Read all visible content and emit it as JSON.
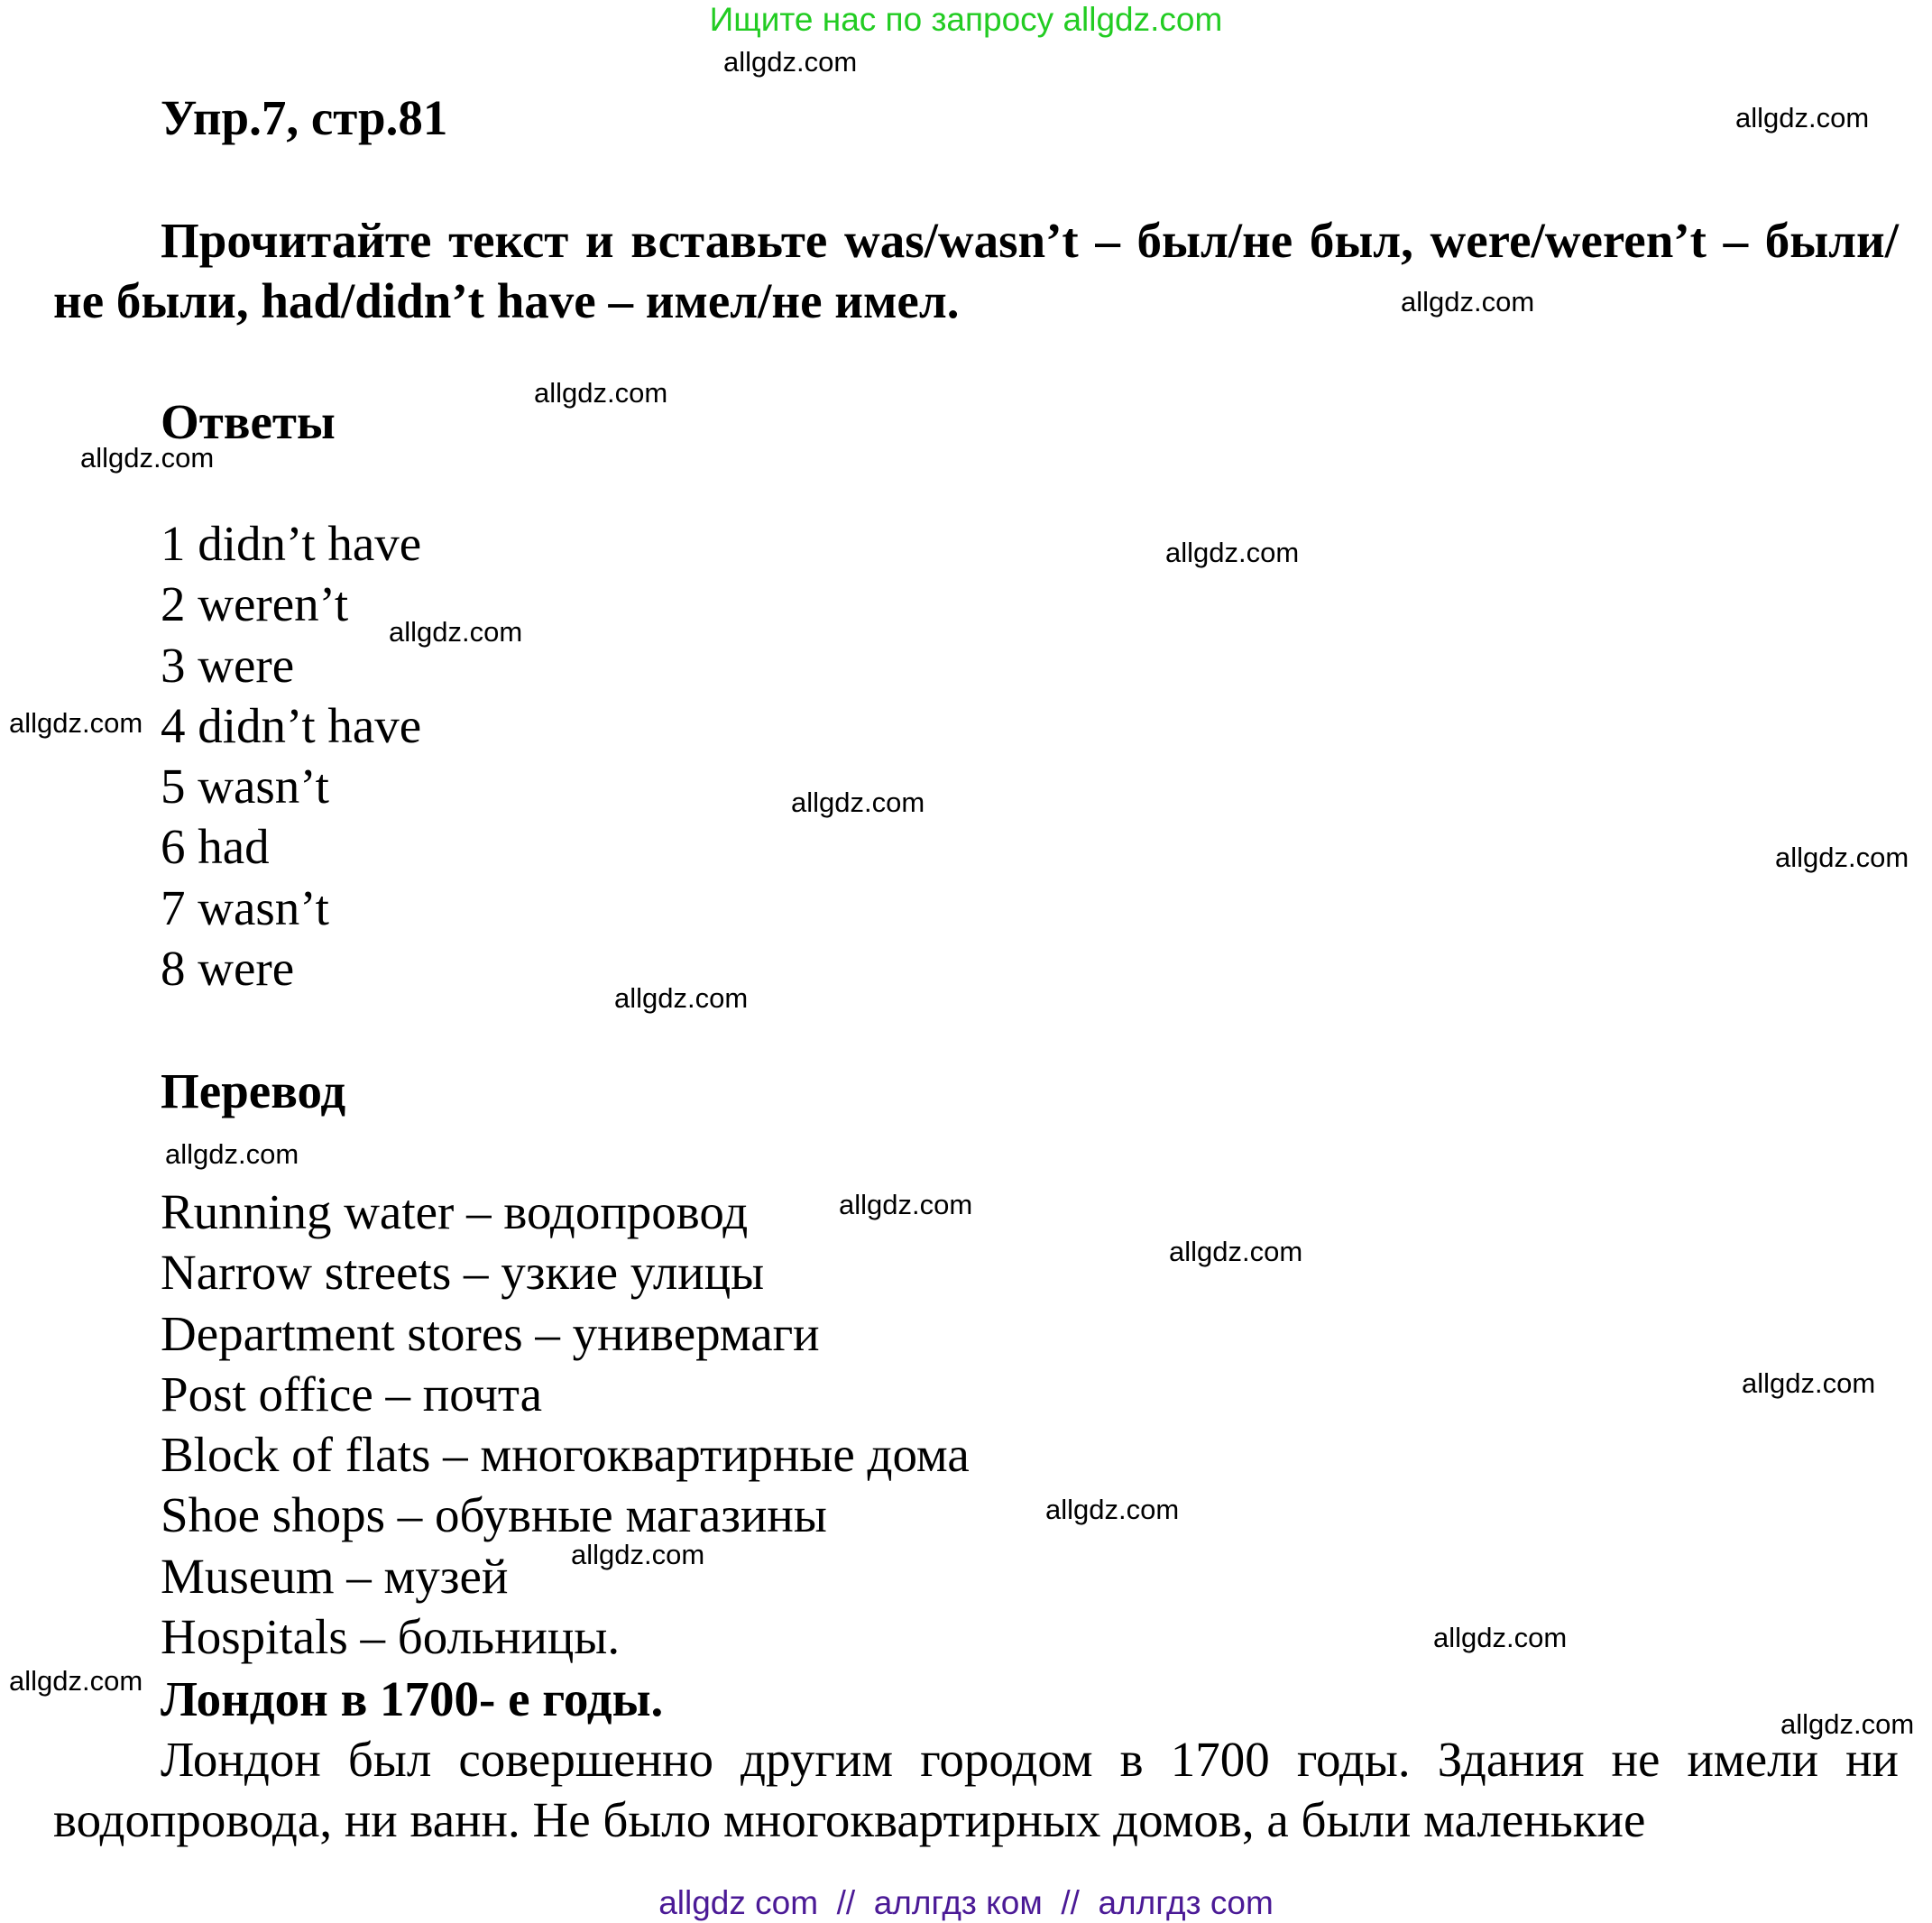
{
  "banner": {
    "text": "Ищите нас по запросу allgdz.com",
    "color": "#22cc22"
  },
  "title": "Упр.7, стр.81",
  "instruction": "Прочитайте текст и вставьте was/wasn’t – был/не был, were/weren’t – были/ не были, had/didn’t have – имел/не имел.",
  "answers": {
    "heading": "Ответы",
    "items": [
      "1 didn’t have",
      "2 weren’t",
      "3 were",
      "4 didn’t have",
      "5 wasn’t",
      "6 had",
      "7 wasn’t",
      "8 were"
    ]
  },
  "translation": {
    "heading": "Перевод",
    "items": [
      "Running water – водопровод",
      "Narrow streets – узкие улицы",
      "Department stores – универмаги",
      "Post office – почта",
      "Block of flats – многоквартирные дома",
      "Shoe shops – обувные магазины",
      "Museum – музей",
      "Hospitals – больницы."
    ]
  },
  "text_heading": "Лондон в 1700- е годы.",
  "text_body": "Лондон был совершенно другим городом в 1700 годы. Здания не имели ни водопровода, ни ванн. Не было многоквартирных домов, а были маленькие",
  "watermark": "allgdz.com",
  "footer": {
    "text": "allgdz com  //  аллгдз ком  //  аллгдз com",
    "color": "#4b1a96"
  }
}
